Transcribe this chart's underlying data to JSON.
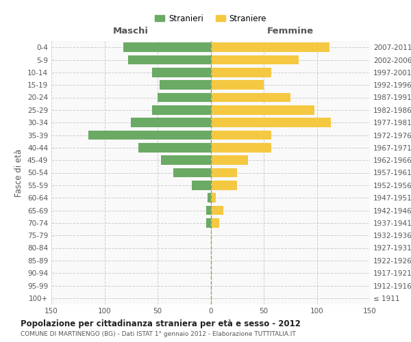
{
  "age_groups": [
    "100+",
    "95-99",
    "90-94",
    "85-89",
    "80-84",
    "75-79",
    "70-74",
    "65-69",
    "60-64",
    "55-59",
    "50-54",
    "45-49",
    "40-44",
    "35-39",
    "30-34",
    "25-29",
    "20-24",
    "15-19",
    "10-14",
    "5-9",
    "0-4"
  ],
  "birth_years": [
    "≤ 1911",
    "1912-1916",
    "1917-1921",
    "1922-1926",
    "1927-1931",
    "1932-1936",
    "1937-1941",
    "1942-1946",
    "1947-1951",
    "1952-1956",
    "1957-1961",
    "1962-1966",
    "1967-1971",
    "1972-1976",
    "1977-1981",
    "1982-1986",
    "1987-1991",
    "1992-1996",
    "1997-2001",
    "2002-2006",
    "2007-2011"
  ],
  "maschi": [
    0,
    0,
    0,
    0,
    0,
    0,
    4,
    4,
    3,
    18,
    35,
    47,
    68,
    115,
    75,
    55,
    50,
    48,
    55,
    78,
    82
  ],
  "femmine": [
    0,
    0,
    0,
    0,
    0,
    0,
    8,
    12,
    5,
    25,
    25,
    35,
    57,
    57,
    113,
    98,
    75,
    50,
    57,
    83,
    112
  ],
  "male_color": "#6aaa64",
  "female_color": "#f5c842",
  "xlim": 150,
  "title": "Popolazione per cittadinanza straniera per età e sesso - 2012",
  "subtitle": "COMUNE DI MARTINENGO (BG) - Dati ISTAT 1° gennaio 2012 - Elaborazione TUTTITALIA.IT",
  "ylabel_left": "Fasce di età",
  "xlabel_left": "Maschi",
  "xlabel_right": "Femmine",
  "legend_male": "Stranieri",
  "legend_female": "Straniere",
  "background_color": "#f9f9f9",
  "grid_color": "#cccccc"
}
